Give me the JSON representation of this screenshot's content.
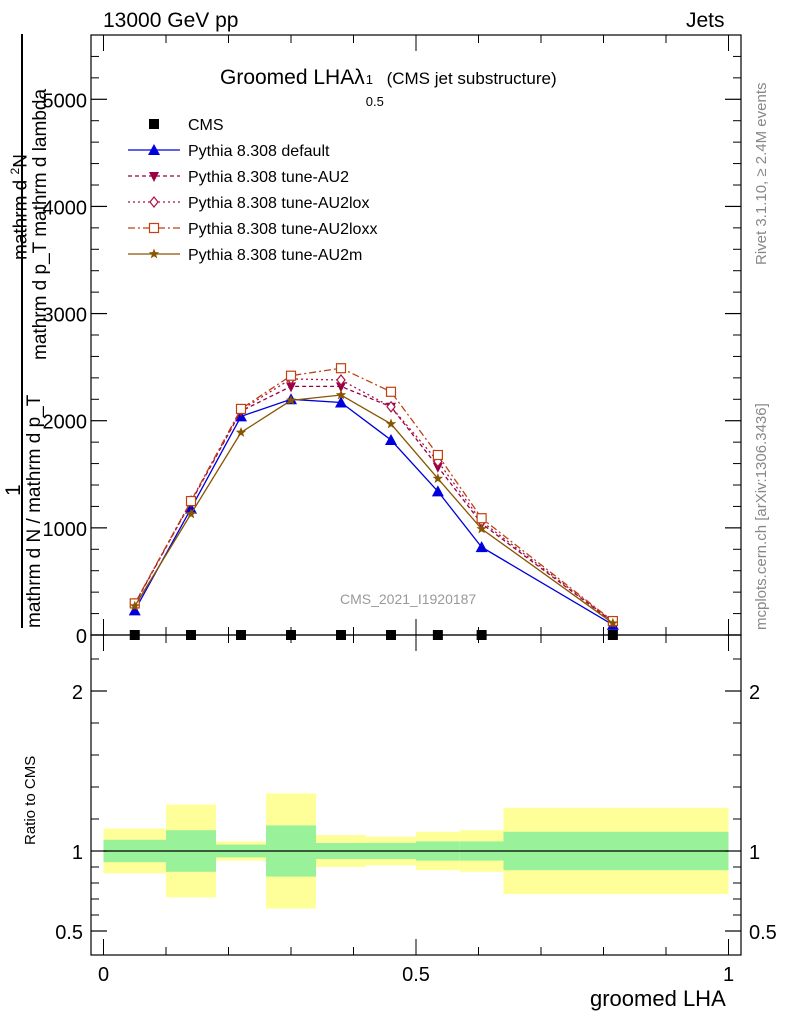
{
  "header": {
    "beam": "13000 GeV pp",
    "process": "Jets",
    "title_main": "Groomed LHA",
    "title_symbol": "λ",
    "title_sup": "1",
    "title_sub": "0.5",
    "title_suffix": "(CMS jet substructure)",
    "analysis_id": "CMS_2021_I1920187"
  },
  "side_labels": {
    "rivet": "Rivet 3.1.10, ≥ 2.4M events",
    "mcplots": "mcplots.cern.ch [arXiv:1306.3436]"
  },
  "y_axis_label": {
    "numerator_one": "1",
    "denominator": "mathrm d N / mathrm d p_T",
    "top_line_a": "mathrm d",
    "top_line_b": "2",
    "top_line_c": "N",
    "top_line_d": "mathrm d p_T mathrm d lambda",
    "sub_T1": "T",
    "sub_T2": "T"
  },
  "chart_data": [
    {
      "type": "line",
      "title": "Groomed LHA λ^1_0.5 (CMS jet substructure)",
      "xlabel": "groomed LHA",
      "ylabel": "1 / (mathrm d N / mathrm d p_T) · mathrm d²N / (mathrm d p_T mathrm d lambda)",
      "xlim": [
        -0.02,
        1.02
      ],
      "ylim": [
        0,
        5600
      ],
      "yticks": [
        0,
        1000,
        2000,
        3000,
        4000,
        5000
      ],
      "ytick_labels": [
        "0",
        "1000",
        "2000",
        "3000",
        "4000",
        "5000"
      ],
      "legend_position": "top-left",
      "x": [
        0.05,
        0.14,
        0.22,
        0.3,
        0.38,
        0.46,
        0.535,
        0.605,
        0.815
      ],
      "series": [
        {
          "name": "CMS",
          "color": "#000000",
          "marker": "square",
          "values": [
            0,
            0,
            0,
            0,
            0,
            0,
            0,
            0,
            0
          ]
        },
        {
          "name": "Pythia 8.308 default",
          "color": "#0000dd",
          "marker": "triangle-up",
          "dash": "",
          "values": [
            230,
            1180,
            2040,
            2200,
            2170,
            1820,
            1340,
            820,
            95
          ]
        },
        {
          "name": "Pythia 8.308 tune-AU2",
          "color": "#990044",
          "marker": "triangle-down",
          "dash": "4,3",
          "values": [
            290,
            1240,
            2090,
            2320,
            2320,
            2130,
            1570,
            1040,
            120
          ]
        },
        {
          "name": "Pythia 8.308 tune-AU2lox",
          "color": "#aa1144",
          "marker": "diamond-open",
          "dash": "2,3",
          "values": [
            290,
            1250,
            2100,
            2390,
            2380,
            2130,
            1620,
            1060,
            125
          ]
        },
        {
          "name": "Pythia 8.308 tune-AU2loxx",
          "color": "#c04010",
          "marker": "square-open",
          "dash": "7,3,2,3",
          "values": [
            295,
            1250,
            2110,
            2420,
            2490,
            2270,
            1680,
            1090,
            130
          ]
        },
        {
          "name": "Pythia 8.308 tune-AU2m",
          "color": "#885500",
          "marker": "star",
          "dash": "",
          "values": [
            270,
            1130,
            1890,
            2190,
            2240,
            1970,
            1460,
            990,
            110
          ]
        }
      ]
    },
    {
      "type": "area",
      "xlabel": "groomed LHA",
      "ylabel": "Ratio to CMS",
      "xlim": [
        -0.02,
        1.02
      ],
      "ylim": [
        0.35,
        2.35
      ],
      "yticks": [
        0.5,
        1,
        2
      ],
      "ytick_labels": [
        "0.5",
        "1",
        "2"
      ],
      "xticks": [
        0,
        0.5,
        1
      ],
      "xtick_labels": [
        "0",
        "0.5",
        "1"
      ],
      "bin_edges": [
        0.0,
        0.1,
        0.18,
        0.26,
        0.34,
        0.42,
        0.5,
        0.57,
        0.64,
        1.0
      ],
      "reference_line": 1,
      "band_inner_color": "#99f299",
      "band_outer_color": "#ffff99",
      "band_inner": [
        [
          0.93,
          1.07
        ],
        [
          0.87,
          1.13
        ],
        [
          0.96,
          1.04
        ],
        [
          0.84,
          1.16
        ],
        [
          0.95,
          1.05
        ],
        [
          0.95,
          1.05
        ],
        [
          0.94,
          1.06
        ],
        [
          0.94,
          1.06
        ],
        [
          0.88,
          1.12
        ]
      ],
      "band_outer": [
        [
          0.86,
          1.14
        ],
        [
          0.71,
          1.29
        ],
        [
          0.94,
          1.06
        ],
        [
          0.64,
          1.36
        ],
        [
          0.9,
          1.1
        ],
        [
          0.91,
          1.09
        ],
        [
          0.88,
          1.12
        ],
        [
          0.87,
          1.13
        ],
        [
          0.73,
          1.27
        ]
      ]
    }
  ]
}
